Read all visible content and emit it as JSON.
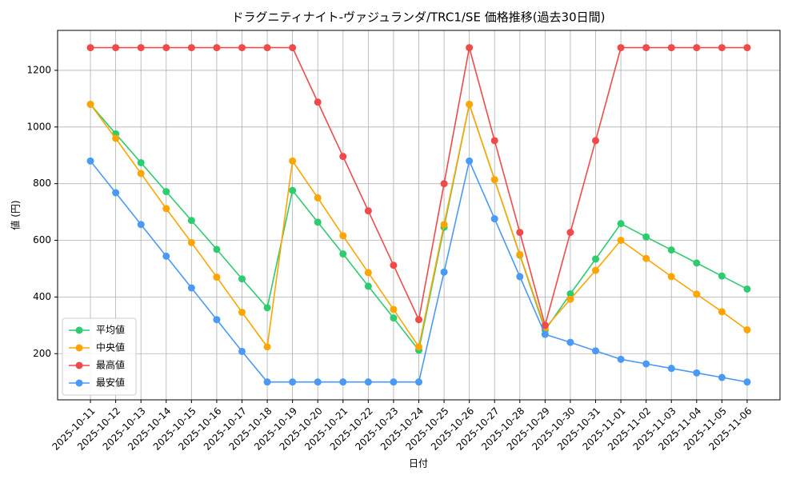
{
  "chart_data": {
    "type": "line",
    "title": "ドラグニティナイト-ヴァジュランダ/TRC1/SE 価格推移(過去30日間)",
    "x_label": "日付",
    "y_label": "値 (円)",
    "x": [
      "2025-10-11",
      "2025-10-12",
      "2025-10-13",
      "2025-10-14",
      "2025-10-15",
      "2025-10-16",
      "2025-10-17",
      "2025-10-18",
      "2025-10-19",
      "2025-10-20",
      "2025-10-21",
      "2025-10-22",
      "2025-10-23",
      "2025-10-24",
      "2025-10-25",
      "2025-10-26",
      "2025-10-27",
      "2025-10-28",
      "2025-10-29",
      "2025-10-30",
      "2025-10-31",
      "2025-11-01",
      "2025-11-02",
      "2025-11-03",
      "2025-11-04",
      "2025-11-05",
      "2025-11-06"
    ],
    "series": [
      {
        "name": "平均値",
        "color": "#2ecc71",
        "values": [
          1080,
          976,
          874,
          772,
          670,
          568,
          464,
          362,
          776,
          664,
          552,
          438,
          326,
          212,
          646,
          1080,
          814,
          548,
          283,
          411,
          534,
          659,
          612,
          566,
          520,
          474,
          428
        ]
      },
      {
        "name": "中央値",
        "color": "#ffa500",
        "values": [
          1080,
          960,
          836,
          712,
          592,
          470,
          346,
          224,
          880,
          750,
          616,
          486,
          356,
          224,
          656,
          1080,
          814,
          550,
          290,
          392,
          494,
          600,
          536,
          472,
          410,
          348,
          284
        ]
      },
      {
        "name": "最高値",
        "color": "#ef4b4b",
        "values": [
          1280,
          1280,
          1280,
          1280,
          1280,
          1280,
          1280,
          1280,
          1280,
          1088,
          896,
          704,
          512,
          320,
          800,
          1280,
          952,
          628,
          300,
          628,
          952,
          1280,
          1280,
          1280,
          1280,
          1280,
          1280
        ]
      },
      {
        "name": "最安値",
        "color": "#4a9af5",
        "values": [
          880,
          768,
          656,
          544,
          432,
          320,
          208,
          100,
          100,
          100,
          100,
          100,
          100,
          100,
          488,
          880,
          676,
          472,
          268,
          240,
          210,
          180,
          164,
          148,
          132,
          116,
          100
        ]
      }
    ],
    "ylim": [
      37,
      1341
    ],
    "yticks": [
      200,
      400,
      600,
      800,
      1000,
      1200
    ],
    "grid": true,
    "legend": "lower-left"
  }
}
